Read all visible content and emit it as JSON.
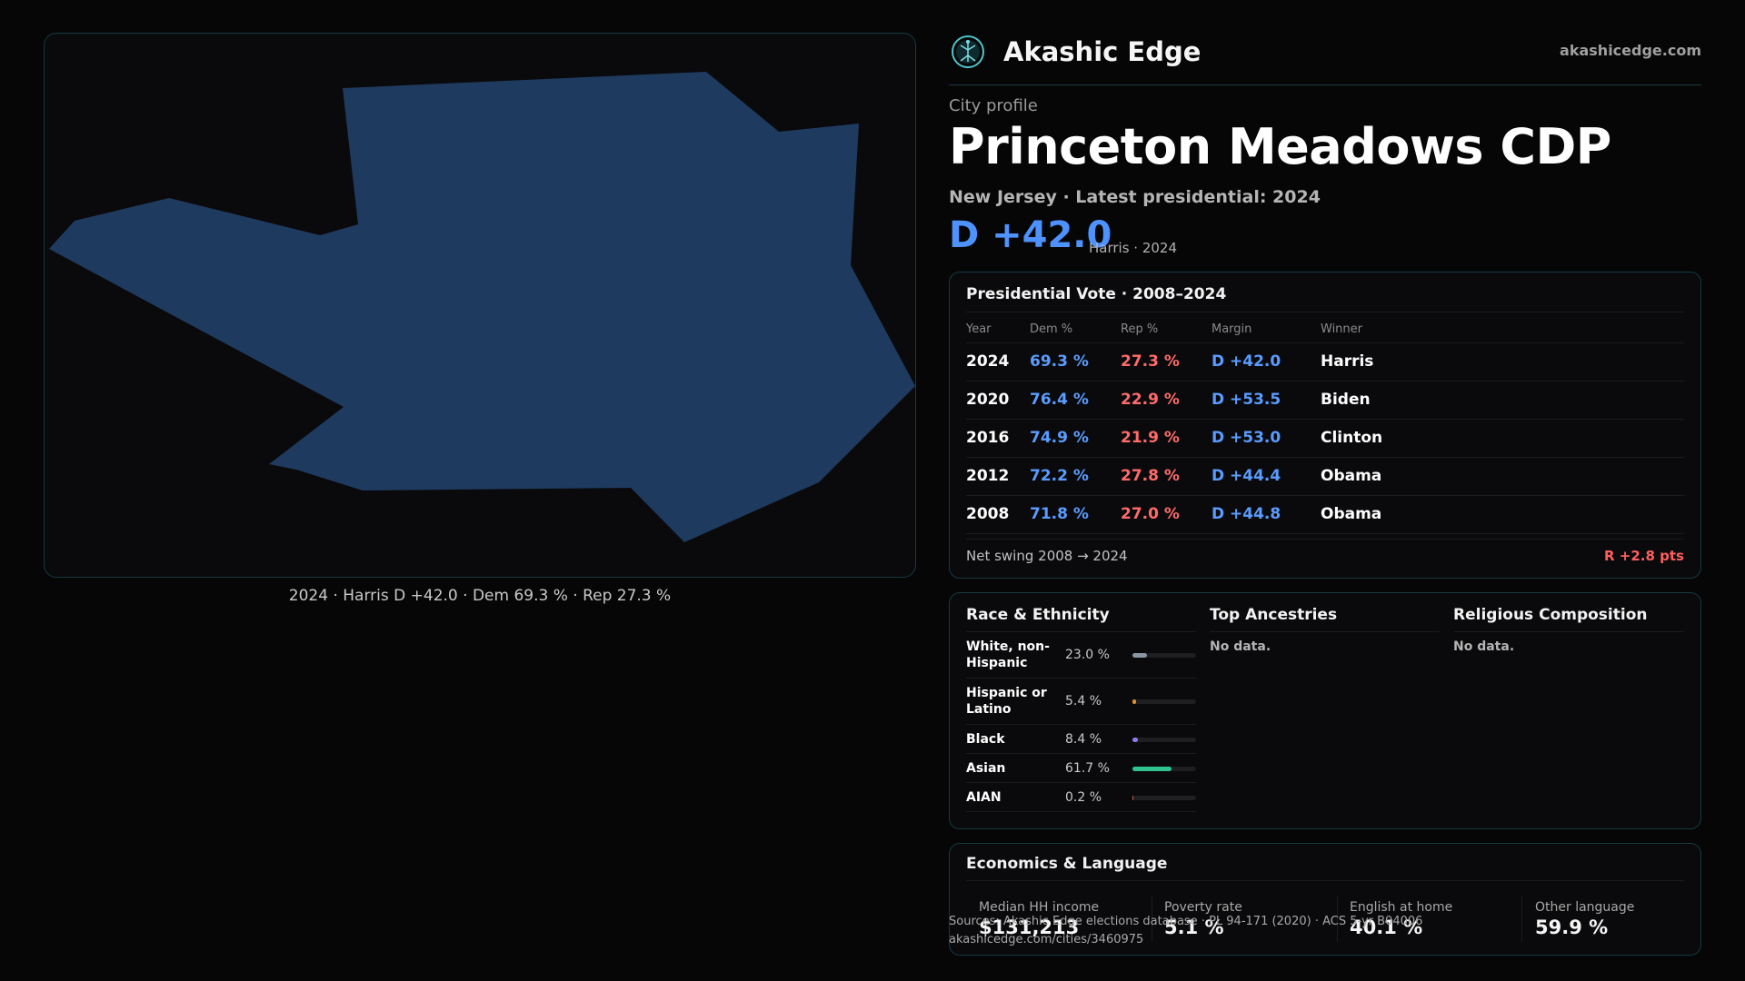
{
  "map": {
    "caption": "2024 · Harris D +42.0 · Dem 69.3 % · Rep 27.3 %",
    "fill_color": "#1f3a5f",
    "border_color": "#163a3f"
  },
  "brand": {
    "name": "Akashic Edge",
    "url": "akashicedge.com",
    "logo_icon": "tree-of-life-icon"
  },
  "profile": {
    "eyebrow": "City profile",
    "title": "Princeton Meadows CDP",
    "subtitle": "New Jersey · Latest presidential: 2024",
    "margin": "D +42.0",
    "margin_note": "Harris · 2024"
  },
  "vote": {
    "title": "Presidential Vote · 2008–2024",
    "headers": [
      "Year",
      "Dem %",
      "Rep %",
      "Margin",
      "Winner"
    ],
    "rows": [
      {
        "year": "2024",
        "dem": "69.3 %",
        "rep": "27.3 %",
        "margin": "D +42.0",
        "winner": "Harris"
      },
      {
        "year": "2020",
        "dem": "76.4 %",
        "rep": "22.9 %",
        "margin": "D +53.5",
        "winner": "Biden"
      },
      {
        "year": "2016",
        "dem": "74.9 %",
        "rep": "21.9 %",
        "margin": "D +53.0",
        "winner": "Clinton"
      },
      {
        "year": "2012",
        "dem": "72.2 %",
        "rep": "27.8 %",
        "margin": "D +44.4",
        "winner": "Obama"
      },
      {
        "year": "2008",
        "dem": "71.8 %",
        "rep": "27.0 %",
        "margin": "D +44.8",
        "winner": "Obama"
      }
    ],
    "swing_label": "Net swing 2008 → 2024",
    "swing_value": "R +2.8 pts"
  },
  "demographics": {
    "race_title": "Race & Ethnicity",
    "race": [
      {
        "label": "White, non-Hispanic",
        "pct": "23.0 %",
        "fraction": 0.23,
        "color": "#8a96a3"
      },
      {
        "label": "Hispanic or Latino",
        "pct": "5.4 %",
        "fraction": 0.054,
        "color": "#e0902f"
      },
      {
        "label": "Black",
        "pct": "8.4 %",
        "fraction": 0.084,
        "color": "#8c7cf0"
      },
      {
        "label": "Asian",
        "pct": "61.7 %",
        "fraction": 0.617,
        "color": "#2fc48d"
      },
      {
        "label": "AIAN",
        "pct": "0.2 %",
        "fraction": 0.002,
        "color": "#c25c5c"
      }
    ],
    "ancestry_title": "Top Ancestries",
    "ancestry_empty": "No data.",
    "religion_title": "Religious Composition",
    "religion_empty": "No data."
  },
  "economics": {
    "title": "Economics & Language",
    "stats": [
      {
        "label": "Median HH income",
        "value": "$131,213"
      },
      {
        "label": "Poverty rate",
        "value": "5.1 %"
      },
      {
        "label": "English at home",
        "value": "40.1 %"
      },
      {
        "label": "Other language",
        "value": "59.9 %"
      }
    ]
  },
  "footer": {
    "source": "Sources: Akashic Edge elections database · PL 94-171 (2020) · ACS 5-yr B04006",
    "link": "akashicedge.com/cities/3460975"
  },
  "colors": {
    "accent_dem": "#5a9cff",
    "accent_rep": "#ff6b6b",
    "panel_border": "#163a3f"
  }
}
